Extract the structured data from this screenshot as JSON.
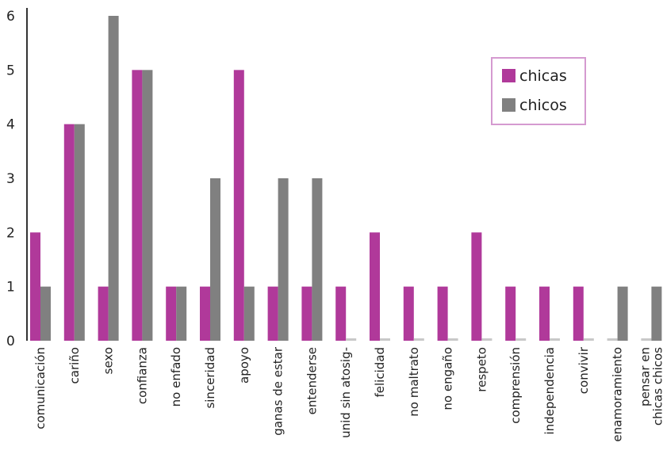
{
  "chart_data": {
    "type": "bar",
    "categories": [
      "comunicación",
      "cariño",
      "sexo",
      "confianza",
      "no enfado",
      "sinceridad",
      "apoyo",
      "ganas de estar",
      "entenderse",
      "unid sin atosig-",
      "felicidad",
      "no maltrato",
      "no engaño",
      "respeto",
      "comprensión",
      "independencia",
      "convivir",
      "enamoramiento",
      "pensar en chicas chicos"
    ],
    "category_lines": [
      [
        "comunicación"
      ],
      [
        "cariño"
      ],
      [
        "sexo"
      ],
      [
        "confianza"
      ],
      [
        "no enfado"
      ],
      [
        "sinceridad"
      ],
      [
        "apoyo"
      ],
      [
        "ganas de estar"
      ],
      [
        "entenderse"
      ],
      [
        "unid sin atosig-"
      ],
      [
        "felicidad"
      ],
      [
        "no maltrato"
      ],
      [
        "no engaño"
      ],
      [
        "respeto"
      ],
      [
        "comprensión"
      ],
      [
        "independencia"
      ],
      [
        "convivir"
      ],
      [
        "enamoramiento"
      ],
      [
        "pensar en",
        "chicas chicos"
      ]
    ],
    "series": [
      {
        "name": "chicas",
        "color": "#b0399a",
        "values": [
          2,
          4,
          1,
          5,
          1,
          1,
          5,
          1,
          1,
          1,
          2,
          1,
          1,
          2,
          1,
          1,
          1,
          0,
          0
        ]
      },
      {
        "name": "chicos",
        "color": "#808080",
        "values": [
          1,
          4,
          6,
          5,
          1,
          3,
          1,
          3,
          3,
          0,
          0,
          0,
          0,
          0,
          0,
          0,
          0,
          1,
          1
        ]
      }
    ],
    "ylim": [
      0,
      6
    ],
    "yticks": [
      "0",
      "1",
      "2",
      "3",
      "4",
      "5",
      "6"
    ],
    "legend_position": "top-right",
    "legend_border_color": "#d59ad0",
    "grid": false
  }
}
